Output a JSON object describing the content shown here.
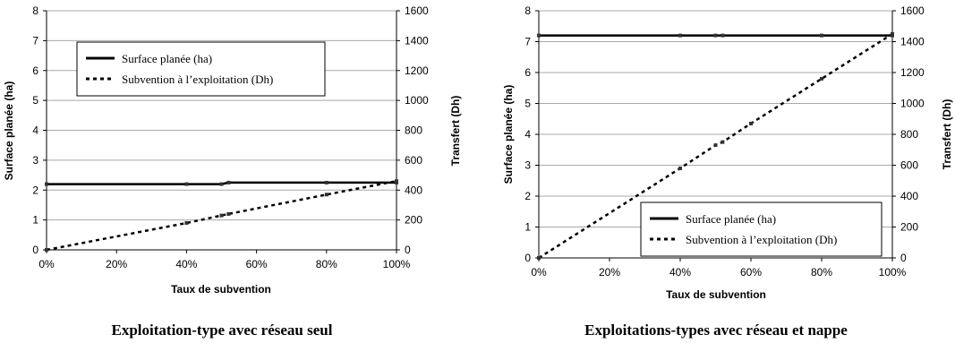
{
  "chart_data": [
    {
      "type": "line",
      "title": "Exploitation-type avec réseau seul",
      "xlabel": "Taux de subvention",
      "ylabel": "Surface planée (ha)",
      "y2label": "Transfert (Dh)",
      "xlim": [
        0,
        100
      ],
      "ylim": [
        0,
        8
      ],
      "y2lim": [
        0,
        1600
      ],
      "xticks": [
        "0%",
        "20%",
        "40%",
        "60%",
        "80%",
        "100%"
      ],
      "yticks": [
        "0",
        "1",
        "2",
        "3",
        "4",
        "5",
        "6",
        "7",
        "8"
      ],
      "y2ticks": [
        "0",
        "200",
        "400",
        "600",
        "800",
        "1000",
        "1200",
        "1400",
        "1600"
      ],
      "grid": true,
      "legend_position": "top-left",
      "series": [
        {
          "name": "Surface planée (ha)",
          "axis": "left",
          "style": "solid",
          "x": [
            0,
            40,
            50,
            52,
            80,
            100
          ],
          "values": [
            2.2,
            2.2,
            2.2,
            2.25,
            2.25,
            2.25
          ]
        },
        {
          "name": "Subvention à l’exploitation (Dh)",
          "axis": "right",
          "style": "dotted",
          "x": [
            0,
            40,
            50,
            52,
            80,
            100
          ],
          "values": [
            0,
            180,
            230,
            240,
            370,
            460
          ]
        }
      ]
    },
    {
      "type": "line",
      "title": "Exploitations-types avec réseau et nappe",
      "xlabel": "Taux de subvention",
      "ylabel": "Surface planée (ha)",
      "y2label": "Transfert (Dh)",
      "xlim": [
        0,
        100
      ],
      "ylim": [
        0,
        8
      ],
      "y2lim": [
        0,
        1600
      ],
      "xticks": [
        "0%",
        "20%",
        "40%",
        "60%",
        "80%",
        "100%"
      ],
      "yticks": [
        "0",
        "1",
        "2",
        "3",
        "4",
        "5",
        "6",
        "7",
        "8"
      ],
      "y2ticks": [
        "0",
        "200",
        "400",
        "600",
        "800",
        "1000",
        "1200",
        "1400",
        "1600"
      ],
      "grid": true,
      "legend_position": "bottom-right",
      "series": [
        {
          "name": "Surface planée (ha)",
          "axis": "left",
          "style": "solid",
          "x": [
            0,
            40,
            50,
            52,
            80,
            100
          ],
          "values": [
            7.2,
            7.2,
            7.2,
            7.2,
            7.2,
            7.2
          ]
        },
        {
          "name": "Subvention à l’exploitation (Dh)",
          "axis": "right",
          "style": "dotted",
          "x": [
            0,
            40,
            50,
            52,
            60,
            80,
            100
          ],
          "values": [
            0,
            580,
            730,
            750,
            870,
            1160,
            1450
          ]
        }
      ]
    }
  ]
}
